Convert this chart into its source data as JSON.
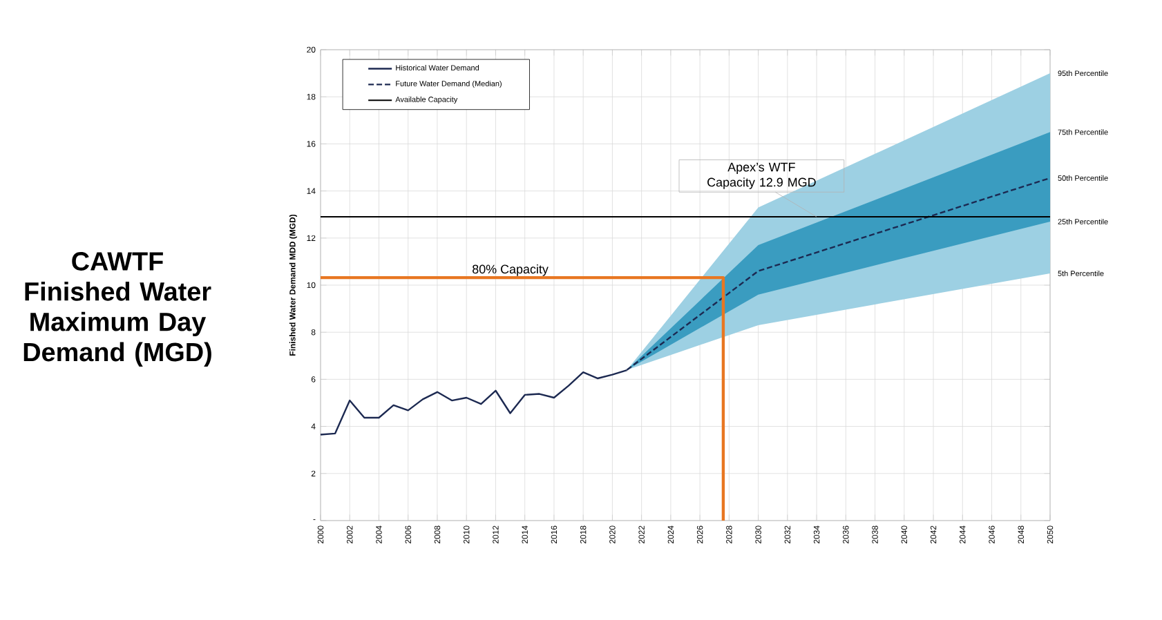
{
  "chart_data": {
    "type": "line",
    "title": "CAWTF Finished Water Maximum Day Demand (MGD)",
    "ylabel": "Finished Water Demand MDD (MGD)",
    "xlim": [
      2000,
      2050
    ],
    "ylim": [
      0,
      20
    ],
    "xticks": [
      2000,
      2002,
      2004,
      2006,
      2008,
      2010,
      2012,
      2014,
      2016,
      2018,
      2020,
      2022,
      2024,
      2026,
      2028,
      2030,
      2032,
      2034,
      2036,
      2038,
      2040,
      2042,
      2044,
      2046,
      2048,
      2050
    ],
    "yticks": [
      {
        "value": 0,
        "label": "-"
      },
      2,
      4,
      6,
      8,
      10,
      12,
      14,
      16,
      18,
      20
    ],
    "grid": true,
    "legend": "top left",
    "marker": "none",
    "series": [
      {
        "color": "#9dd0e3",
        "x": [
          2021,
          2030,
          2050
        ],
        "values": [
          null,
          null,
          null
        ],
        "lower": [
          6.4,
          8.3,
          10.5
        ],
        "upper": [
          6.4,
          13.3,
          19.0
        ]
      },
      {
        "color": "#3a9cc0",
        "x": [
          2021,
          2030,
          2050
        ],
        "values": [
          null,
          null,
          null
        ],
        "lower": [
          6.4,
          9.6,
          12.7
        ],
        "upper": [
          6.4,
          11.7,
          16.5
        ]
      },
      {
        "name": "Historical Water Demand",
        "color": "#1c2951",
        "x": [
          2000,
          2001,
          2002,
          2003,
          2004,
          2005,
          2006,
          2007,
          2008,
          2009,
          2010,
          2011,
          2012,
          2013,
          2014,
          2015,
          2016,
          2017,
          2018,
          2019,
          2020,
          2021
        ],
        "values": [
          3.65,
          3.7,
          5.1,
          4.37,
          4.37,
          4.9,
          4.68,
          5.15,
          5.46,
          5.1,
          5.22,
          4.95,
          5.52,
          4.56,
          5.34,
          5.38,
          5.22,
          5.73,
          6.3,
          6.04,
          6.2,
          6.39
        ]
      },
      {
        "name": "Future Water Demand (Median)",
        "color": "#1c2951",
        "line_style": "dashed",
        "x": [
          2021,
          2030,
          2050
        ],
        "values": [
          6.4,
          10.6,
          14.55
        ]
      },
      {
        "color": "#e87722",
        "x": [
          2000,
          2027.6,
          2027.6
        ],
        "values": [
          10.32,
          10.32,
          0
        ]
      }
    ],
    "ref_lines": [
      {
        "axis": "y",
        "value": 12.9,
        "label": "Available Capacity",
        "color": "#000000"
      }
    ],
    "annotations": [
      {
        "text": "Apex’s WTF Capacity 12.9 MGD",
        "x": 2034,
        "y": 12.9
      },
      {
        "text": "80% Capacity",
        "x": 2013,
        "y": 10.32
      },
      {
        "text": "95th Percentile",
        "x": 2050,
        "y": 19.0
      },
      {
        "text": "75th Percentile",
        "x": 2050,
        "y": 16.5
      },
      {
        "text": "50th Percentile",
        "x": 2050,
        "y": 14.55
      },
      {
        "text": "25th Percentile",
        "x": 2050,
        "y": 12.7
      },
      {
        "text": "5th Percentile",
        "x": 2050,
        "y": 10.5
      }
    ]
  }
}
